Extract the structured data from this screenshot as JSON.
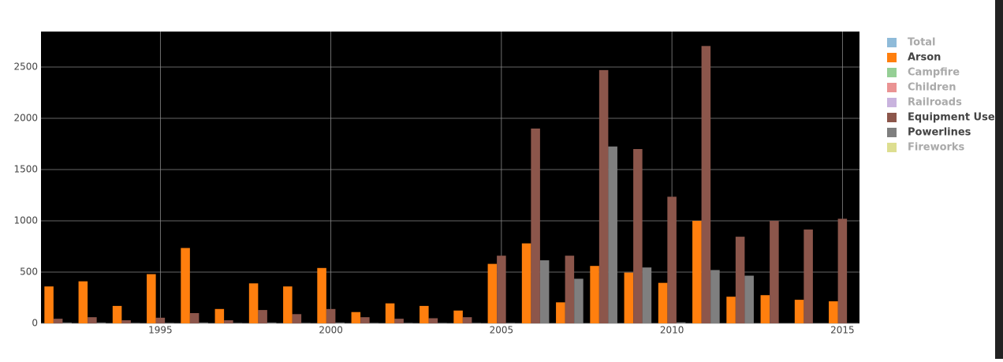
{
  "chart_data": {
    "type": "bar",
    "x": [
      1992,
      1993,
      1994,
      1995,
      1996,
      1997,
      1998,
      1999,
      2000,
      2001,
      2002,
      2003,
      2004,
      2005,
      2006,
      2007,
      2008,
      2009,
      2010,
      2011,
      2012,
      2013,
      2014,
      2015
    ],
    "series": [
      {
        "name": "Total",
        "color": "#1f77b4",
        "visible": false,
        "values": [
          null,
          null,
          null,
          null,
          null,
          null,
          null,
          null,
          null,
          null,
          null,
          null,
          null,
          null,
          null,
          null,
          null,
          null,
          null,
          null,
          null,
          null,
          null,
          null
        ]
      },
      {
        "name": "Arson",
        "color": "#ff7f0e",
        "visible": true,
        "values": [
          360,
          410,
          170,
          480,
          735,
          140,
          390,
          360,
          540,
          110,
          195,
          170,
          125,
          580,
          780,
          205,
          560,
          495,
          395,
          1000,
          260,
          275,
          230,
          215
        ]
      },
      {
        "name": "Campfire",
        "color": "#2ca02c",
        "visible": false,
        "values": [
          null,
          null,
          null,
          null,
          null,
          null,
          null,
          null,
          null,
          null,
          null,
          null,
          null,
          null,
          null,
          null,
          null,
          null,
          null,
          null,
          null,
          null,
          null,
          null
        ]
      },
      {
        "name": "Children",
        "color": "#d62728",
        "visible": false,
        "values": [
          null,
          null,
          null,
          null,
          null,
          null,
          null,
          null,
          null,
          null,
          null,
          null,
          null,
          null,
          null,
          null,
          null,
          null,
          null,
          null,
          null,
          null,
          null,
          null
        ]
      },
      {
        "name": "Railroads",
        "color": "#9467bd",
        "visible": false,
        "values": [
          null,
          null,
          null,
          null,
          null,
          null,
          null,
          null,
          null,
          null,
          null,
          null,
          null,
          null,
          null,
          null,
          null,
          null,
          null,
          null,
          null,
          null,
          null,
          null
        ]
      },
      {
        "name": "Equipment Use",
        "color": "#8c564b",
        "visible": true,
        "values": [
          45,
          60,
          30,
          55,
          100,
          30,
          130,
          90,
          140,
          60,
          45,
          50,
          60,
          660,
          1900,
          660,
          2470,
          1700,
          1235,
          2705,
          845,
          1000,
          915,
          1020
        ]
      },
      {
        "name": "Powerlines",
        "color": "#7f7f7f",
        "visible": true,
        "values": [
          8,
          8,
          5,
          5,
          8,
          5,
          8,
          5,
          8,
          5,
          5,
          5,
          5,
          5,
          615,
          435,
          1725,
          545,
          10,
          520,
          465,
          0,
          0,
          0
        ]
      },
      {
        "name": "Fireworks",
        "color": "#bcbd22",
        "visible": false,
        "values": [
          null,
          null,
          null,
          null,
          null,
          null,
          null,
          null,
          null,
          null,
          null,
          null,
          null,
          null,
          null,
          null,
          null,
          null,
          null,
          null,
          null,
          null,
          null,
          null
        ]
      }
    ],
    "xlim": [
      1991.5,
      2015.5
    ],
    "xticks": [
      1995,
      2000,
      2005,
      2010,
      2015
    ],
    "ylim": [
      0,
      2846
    ],
    "yticks": [
      0,
      500,
      1000,
      1500,
      2000,
      2500
    ],
    "grid": true,
    "legend": "right",
    "background": "#000000"
  }
}
